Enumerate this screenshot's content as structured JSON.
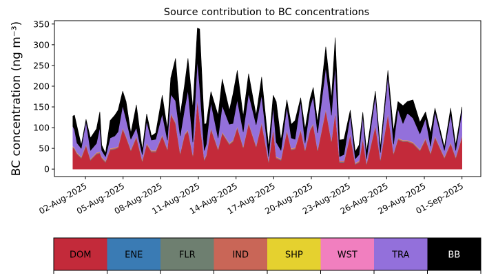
{
  "chart_data": {
    "type": "area",
    "stacked": true,
    "title": "Source contribution to BC concentrations",
    "xlabel": "",
    "ylabel": "BC concentration (ng m⁻³)",
    "x_unit": "days since 01-Aug-2025",
    "xlim": [
      -1.47,
      32.5
    ],
    "ylim": [
      -18,
      358
    ],
    "yticks": [
      0,
      50,
      100,
      150,
      200,
      250,
      300,
      350
    ],
    "xticks": [
      {
        "day": 1,
        "label": "02-Aug-2025"
      },
      {
        "day": 4,
        "label": "05-Aug-2025"
      },
      {
        "day": 7,
        "label": "08-Aug-2025"
      },
      {
        "day": 10,
        "label": "11-Aug-2025"
      },
      {
        "day": 13,
        "label": "14-Aug-2025"
      },
      {
        "day": 16,
        "label": "17-Aug-2025"
      },
      {
        "day": 19,
        "label": "20-Aug-2025"
      },
      {
        "day": 22,
        "label": "23-Aug-2025"
      },
      {
        "day": 25,
        "label": "26-Aug-2025"
      },
      {
        "day": 28,
        "label": "29-Aug-2025"
      },
      {
        "day": 31,
        "label": "01-Sep-2025"
      }
    ],
    "grid": false,
    "legend_placement": "bottom",
    "x": [
      0,
      0.13,
      0.33,
      0.67,
      1.05,
      1.4,
      1.88,
      2.15,
      2.3,
      2.6,
      2.97,
      3.34,
      3.6,
      3.97,
      4.24,
      4.62,
      5.06,
      5.53,
      5.88,
      6.26,
      6.6,
      7.12,
      7.53,
      7.8,
      8.18,
      8.55,
      8.9,
      9.17,
      9.56,
      9.92,
      10.1,
      10.47,
      10.63,
      11.0,
      11.57,
      11.9,
      12.47,
      12.75,
      13.1,
      13.57,
      14.0,
      14.6,
      15.04,
      15.6,
      15.96,
      16.2,
      16.58,
      17.05,
      17.4,
      17.7,
      18.15,
      18.5,
      18.9,
      19.15,
      19.5,
      20.15,
      20.6,
      20.9,
      21.25,
      21.6,
      22.1,
      22.5,
      22.8,
      23.1,
      23.4,
      24.1,
      24.5,
      25.1,
      25.55,
      25.9,
      26.3,
      26.65,
      27.1,
      27.65,
      28.1,
      28.5,
      28.85,
      29.6,
      30.1,
      30.5,
      31.0
    ],
    "series": [
      {
        "name": "DOM",
        "color": "#c32a3a",
        "text_color": "#000000",
        "values": [
          51,
          48,
          36,
          26,
          56,
          21,
          36,
          38,
          26,
          16,
          46,
          48,
          51,
          96,
          76,
          44,
          76,
          18,
          59,
          41,
          41,
          79,
          46,
          131,
          109,
          36,
          81,
          91,
          31,
          166,
          116,
          21,
          31,
          96,
          46,
          86,
          59,
          66,
          99,
          51,
          109,
          53,
          109,
          16,
          96,
          26,
          21,
          91,
          46,
          48,
          93,
          44,
          93,
          106,
          44,
          141,
          66,
          136,
          16,
          16,
          81,
          11,
          16,
          71,
          11,
          103,
          21,
          131,
          36,
          71,
          66,
          66,
          61,
          44,
          71,
          36,
          76,
          26,
          61,
          26,
          76
        ]
      },
      {
        "name": "ENE",
        "color": "#3a7bb4",
        "text_color": "#000000",
        "values": [
          0.5,
          0.5,
          0.5,
          0.5,
          0.5,
          0.5,
          0.5,
          0.5,
          0.5,
          0.5,
          0.5,
          0.5,
          0.5,
          0.5,
          0.5,
          0.5,
          0.5,
          0.5,
          0.5,
          0.5,
          0.5,
          0.5,
          0.5,
          0.5,
          0.5,
          0.5,
          0.5,
          0.5,
          0.5,
          0.5,
          0.5,
          0.5,
          0.5,
          0.5,
          0.5,
          0.5,
          0.5,
          0.5,
          0.5,
          0.5,
          0.5,
          0.5,
          0.5,
          0.5,
          0.5,
          0.5,
          0.5,
          0.5,
          0.5,
          0.5,
          0.5,
          0.5,
          0.5,
          0.5,
          0.5,
          0.5,
          0.5,
          0.5,
          0.5,
          0.5,
          0.5,
          0.5,
          0.5,
          0.5,
          0.5,
          0.5,
          0.5,
          0.5,
          0.5,
          0.5,
          0.5,
          0.5,
          0.5,
          0.5,
          0.5,
          0.5,
          0.5,
          0.5,
          0.5,
          0.5,
          0.5
        ]
      },
      {
        "name": "FLR",
        "color": "#6e7f70",
        "text_color": "#000000",
        "values": [
          0.5,
          0.5,
          0.5,
          0.5,
          0.5,
          0.5,
          0.5,
          0.5,
          0.5,
          0.5,
          0.5,
          0.5,
          0.5,
          0.5,
          0.5,
          0.5,
          0.5,
          0.5,
          0.5,
          0.5,
          0.5,
          0.5,
          0.5,
          0.5,
          0.5,
          0.5,
          0.5,
          0.5,
          0.5,
          0.5,
          0.5,
          0.5,
          0.5,
          0.5,
          0.5,
          0.5,
          0.5,
          0.5,
          0.5,
          0.5,
          0.5,
          0.5,
          0.5,
          0.5,
          0.5,
          0.5,
          0.5,
          0.5,
          0.5,
          0.5,
          0.5,
          0.5,
          0.5,
          0.5,
          0.5,
          0.5,
          0.5,
          0.5,
          0.5,
          0.5,
          0.5,
          0.5,
          0.5,
          0.5,
          0.5,
          0.5,
          0.5,
          0.5,
          0.5,
          0.5,
          0.5,
          0.5,
          0.5,
          0.5,
          0.5,
          0.5,
          0.5,
          0.5,
          0.5,
          0.5,
          0.5
        ]
      },
      {
        "name": "IND",
        "color": "#c96657",
        "text_color": "#000000",
        "values": [
          2,
          2,
          2,
          2,
          2,
          2,
          2,
          2,
          2,
          2,
          2,
          2,
          2,
          2,
          2,
          2,
          2,
          2,
          2,
          2,
          2,
          2,
          2,
          2,
          2,
          2,
          2,
          2,
          2,
          2,
          2,
          2,
          2,
          2,
          2,
          2,
          2,
          2,
          2,
          2,
          2,
          2,
          2,
          2,
          2,
          2,
          2,
          2,
          2,
          2,
          2,
          2,
          2,
          2,
          2,
          2,
          2,
          2,
          2,
          2,
          2,
          2,
          2,
          2,
          2,
          2,
          2,
          2,
          2,
          2,
          2,
          2,
          2,
          2,
          2,
          2,
          2,
          2,
          2,
          2,
          2
        ]
      },
      {
        "name": "SHP",
        "color": "#e5d12f",
        "text_color": "#000000",
        "values": [
          0.5,
          0.5,
          0.5,
          0.5,
          0.5,
          0.5,
          0.5,
          0.5,
          0.5,
          0.5,
          0.5,
          0.5,
          0.5,
          0.5,
          0.5,
          0.5,
          0.5,
          0.5,
          0.5,
          0.5,
          0.5,
          0.5,
          0.5,
          0.5,
          0.5,
          0.5,
          0.5,
          0.5,
          0.5,
          0.5,
          0.5,
          0.5,
          0.5,
          0.5,
          0.5,
          0.5,
          0.5,
          0.5,
          0.5,
          0.5,
          0.5,
          0.5,
          0.5,
          0.5,
          0.5,
          0.5,
          0.5,
          0.5,
          0.5,
          0.5,
          0.5,
          0.5,
          0.5,
          0.5,
          0.5,
          0.5,
          0.5,
          0.5,
          0.5,
          0.5,
          0.5,
          0.5,
          0.5,
          0.5,
          0.5,
          0.5,
          0.5,
          0.5,
          0.5,
          0.5,
          0.5,
          0.5,
          0.5,
          0.5,
          0.5,
          0.5,
          0.5,
          0.5,
          0.5,
          0.5,
          0.5
        ]
      },
      {
        "name": "WST",
        "color": "#f17fbf",
        "text_color": "#000000",
        "values": [
          0.5,
          0.5,
          0.5,
          0.5,
          0.5,
          0.5,
          0.5,
          0.5,
          0.5,
          0.5,
          0.5,
          0.5,
          0.5,
          0.5,
          0.5,
          0.5,
          0.5,
          0.5,
          0.5,
          0.5,
          0.5,
          0.5,
          0.5,
          0.5,
          0.5,
          0.5,
          0.5,
          0.5,
          0.5,
          0.5,
          0.5,
          0.5,
          0.5,
          0.5,
          0.5,
          0.5,
          0.5,
          0.5,
          0.5,
          0.5,
          0.5,
          0.5,
          0.5,
          0.5,
          0.5,
          0.5,
          0.5,
          0.5,
          0.5,
          0.5,
          0.5,
          0.5,
          0.5,
          0.5,
          0.5,
          0.5,
          0.5,
          0.5,
          0.5,
          0.5,
          0.5,
          0.5,
          0.5,
          0.5,
          0.5,
          0.5,
          0.5,
          0.5,
          0.5,
          0.5,
          0.5,
          0.5,
          0.5,
          0.5,
          0.5,
          0.5,
          0.5,
          0.5,
          0.5,
          0.5,
          0.5
        ]
      },
      {
        "name": "TRA",
        "color": "#9370db",
        "text_color": "#000000",
        "values": [
          48,
          43,
          23,
          20,
          55,
          20,
          22,
          58,
          15,
          10,
          25,
          28,
          35,
          53,
          40,
          24,
          20,
          13,
          52,
          25,
          27,
          50,
          20,
          45,
          52,
          40,
          60,
          95,
          30,
          92,
          80,
          20,
          25,
          60,
          25,
          63,
          45,
          40,
          64,
          35,
          69,
          50,
          65,
          10,
          50,
          35,
          20,
          55,
          25,
          20,
          66,
          15,
          53,
          65,
          39,
          100,
          60,
          110,
          10,
          15,
          45,
          10,
          15,
          53,
          10,
          71,
          15,
          90,
          20,
          70,
          40,
          65,
          58,
          37,
          47,
          15,
          58,
          15,
          68,
          15,
          60
        ]
      },
      {
        "name": "BB",
        "color": "#000000",
        "text_color": "#ffffff",
        "values": [
          25,
          35,
          40,
          8,
          5,
          30,
          35,
          38,
          13,
          8,
          42,
          50,
          52,
          35,
          43,
          15,
          55,
          12,
          18,
          10,
          15,
          45,
          27,
          40,
          102,
          50,
          58,
          77,
          82,
          78,
          138,
          63,
          50,
          27,
          55,
          64,
          34,
          70,
          71,
          38,
          48,
          23,
          44,
          23,
          28,
          98,
          25,
          17,
          33,
          45,
          9,
          34,
          20,
          22,
          26,
          50,
          40,
          67,
          40,
          37,
          12,
          17,
          23,
          9,
          17,
          10,
          13,
          13,
          32,
          18,
          43,
          28,
          44,
          28,
          16,
          32,
          9,
          8,
          14,
          13,
          10
        ]
      }
    ]
  }
}
